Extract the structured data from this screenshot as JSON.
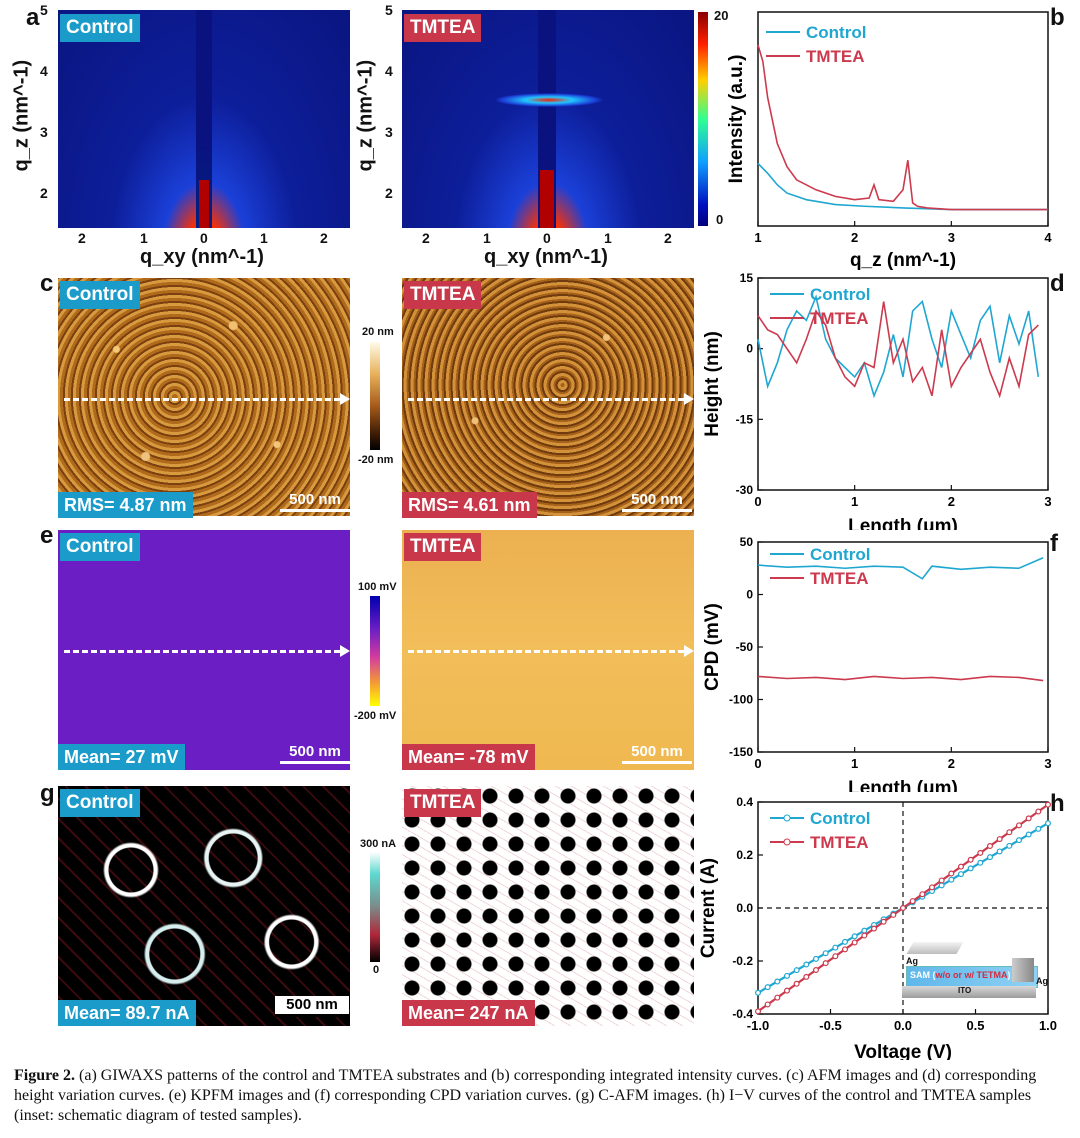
{
  "panel_labels": [
    "a",
    "b",
    "c",
    "d",
    "e",
    "f",
    "g",
    "h"
  ],
  "labels": {
    "control": "Control",
    "tmtea": "TMTEA"
  },
  "giwaxs": {
    "y_axis_title": "q_z (nm^-1)",
    "x_axis_title": "q_xy (nm^-1)",
    "y_ticks": [
      "5",
      "4",
      "3",
      "2"
    ],
    "x_ticks": [
      "2",
      "1",
      "0",
      "1",
      "2"
    ],
    "colorbar_ticks": [
      "20",
      "0"
    ]
  },
  "afm": {
    "colorbar_top": "20 nm",
    "colorbar_bottom": "-20 nm",
    "control_rms": "RMS= 4.87 nm",
    "tmtea_rms": "RMS= 4.61 nm",
    "scale_bar": "500 nm"
  },
  "kpfm": {
    "colorbar_top": "100 mV",
    "colorbar_bottom": "-200 mV",
    "control_mean": "Mean= 27 mV",
    "tmtea_mean": "Mean= -78 mV",
    "scale_bar": "500 nm"
  },
  "cafm": {
    "colorbar_top": "300 nA",
    "colorbar_bottom": "0",
    "control_mean": "Mean= 89.7 nA",
    "tmtea_mean": "Mean= 247 nA",
    "scale_bar": "500 nm"
  },
  "inset": {
    "ag": "Ag",
    "sam_prefix": "SAM (",
    "sam_mid": "w/o or w/ TETMA",
    "sam_suffix": ")",
    "ito": "ITO"
  },
  "colors": {
    "control": "#1fa7d2",
    "tmtea": "#cc3a4e"
  },
  "chart_data": [
    {
      "id": "b",
      "type": "line",
      "xlabel": "q_z (nm^-1)",
      "ylabel": "Intensity (a.u.)",
      "xlim": [
        1,
        4
      ],
      "xticks": [
        1,
        2,
        3,
        4
      ],
      "series": [
        {
          "name": "Control",
          "x": [
            1.0,
            1.1,
            1.2,
            1.3,
            1.5,
            1.8,
            2.1,
            2.5,
            3.0,
            3.5,
            4.0
          ],
          "y": [
            0.58,
            0.52,
            0.45,
            0.4,
            0.36,
            0.33,
            0.32,
            0.31,
            0.3,
            0.3,
            0.3
          ]
        },
        {
          "name": "TMTEA",
          "x": [
            1.0,
            1.05,
            1.1,
            1.2,
            1.3,
            1.4,
            1.6,
            1.8,
            2.0,
            2.15,
            2.2,
            2.25,
            2.4,
            2.5,
            2.55,
            2.6,
            2.65,
            2.75,
            3.0,
            3.5,
            4.0
          ],
          "y": [
            1.3,
            1.2,
            0.98,
            0.7,
            0.56,
            0.48,
            0.42,
            0.38,
            0.36,
            0.37,
            0.45,
            0.36,
            0.35,
            0.42,
            0.6,
            0.34,
            0.32,
            0.31,
            0.3,
            0.3,
            0.3
          ]
        }
      ]
    },
    {
      "id": "d",
      "type": "line",
      "xlabel": "Length (μm)",
      "ylabel": "Height (nm)",
      "xlim": [
        0,
        3
      ],
      "ylim": [
        -30,
        15
      ],
      "xticks": [
        0,
        1,
        2,
        3
      ],
      "yticks": [
        -30,
        -15,
        0,
        15
      ],
      "series": [
        {
          "name": "Control",
          "x": [
            0,
            0.1,
            0.2,
            0.3,
            0.4,
            0.5,
            0.6,
            0.7,
            0.8,
            0.9,
            1.0,
            1.1,
            1.2,
            1.3,
            1.4,
            1.5,
            1.6,
            1.7,
            1.8,
            1.9,
            2.0,
            2.1,
            2.2,
            2.3,
            2.4,
            2.5,
            2.6,
            2.7,
            2.8,
            2.9
          ],
          "y": [
            2,
            -8,
            -3,
            4,
            8,
            6,
            11,
            2,
            -2,
            -4,
            -6,
            -3,
            -10,
            -5,
            3,
            -6,
            8,
            10,
            2,
            -4,
            8,
            3,
            -2,
            6,
            9,
            -3,
            7,
            1,
            8,
            -6
          ]
        },
        {
          "name": "TMTEA",
          "x": [
            0,
            0.1,
            0.2,
            0.3,
            0.4,
            0.5,
            0.6,
            0.7,
            0.8,
            0.9,
            1.0,
            1.1,
            1.2,
            1.3,
            1.4,
            1.5,
            1.6,
            1.7,
            1.8,
            1.9,
            2.0,
            2.1,
            2.2,
            2.3,
            2.4,
            2.5,
            2.6,
            2.7,
            2.8,
            2.9
          ],
          "y": [
            7,
            4,
            3,
            0,
            -3,
            2,
            8,
            5,
            -2,
            -6,
            -8,
            -3,
            -4,
            10,
            -3,
            2,
            -7,
            -4,
            -10,
            4,
            -8,
            -4,
            -1,
            2,
            -5,
            -10,
            -2,
            -8,
            3,
            5
          ]
        }
      ]
    },
    {
      "id": "f",
      "type": "line",
      "xlabel": "Length (μm)",
      "ylabel": "CPD (mV)",
      "xlim": [
        0,
        3
      ],
      "ylim": [
        -150,
        50
      ],
      "xticks": [
        0,
        1,
        2,
        3
      ],
      "yticks": [
        -150,
        -100,
        -50,
        0,
        50
      ],
      "series": [
        {
          "name": "Control",
          "x": [
            0,
            0.3,
            0.6,
            0.9,
            1.2,
            1.5,
            1.7,
            1.8,
            2.1,
            2.4,
            2.7,
            2.95
          ],
          "y": [
            28,
            26,
            27,
            25,
            27,
            26,
            15,
            27,
            24,
            26,
            25,
            35
          ]
        },
        {
          "name": "TMTEA",
          "x": [
            0,
            0.3,
            0.6,
            0.9,
            1.2,
            1.5,
            1.8,
            2.1,
            2.4,
            2.7,
            2.95
          ],
          "y": [
            -78,
            -80,
            -79,
            -81,
            -78,
            -80,
            -79,
            -81,
            -78,
            -79,
            -82
          ]
        }
      ]
    },
    {
      "id": "h",
      "type": "line",
      "xlabel": "Voltage (V)",
      "ylabel": "Current (A)",
      "xlim": [
        -1,
        1
      ],
      "ylim": [
        -0.4,
        0.4
      ],
      "xticks": [
        -1.0,
        -0.5,
        0.0,
        0.5,
        1.0
      ],
      "yticks": [
        -0.4,
        -0.2,
        0.0,
        0.2,
        0.4
      ],
      "series": [
        {
          "name": "Control",
          "x": [
            -1,
            1
          ],
          "y": [
            -0.32,
            0.32
          ]
        },
        {
          "name": "TMTEA",
          "x": [
            -1,
            1
          ],
          "y": [
            -0.39,
            0.39
          ]
        }
      ]
    }
  ],
  "caption": {
    "lead": "Figure 2.",
    "text": " (a) GIWAXS patterns of the control and TMTEA substrates and (b) corresponding integrated intensity curves. (c) AFM images and (d) corresponding height variation curves. (e) KPFM images and (f) corresponding CPD variation curves. (g) C-AFM images. (h) I−V curves of the control and TMTEA samples (inset: schematic diagram of tested samples)."
  }
}
